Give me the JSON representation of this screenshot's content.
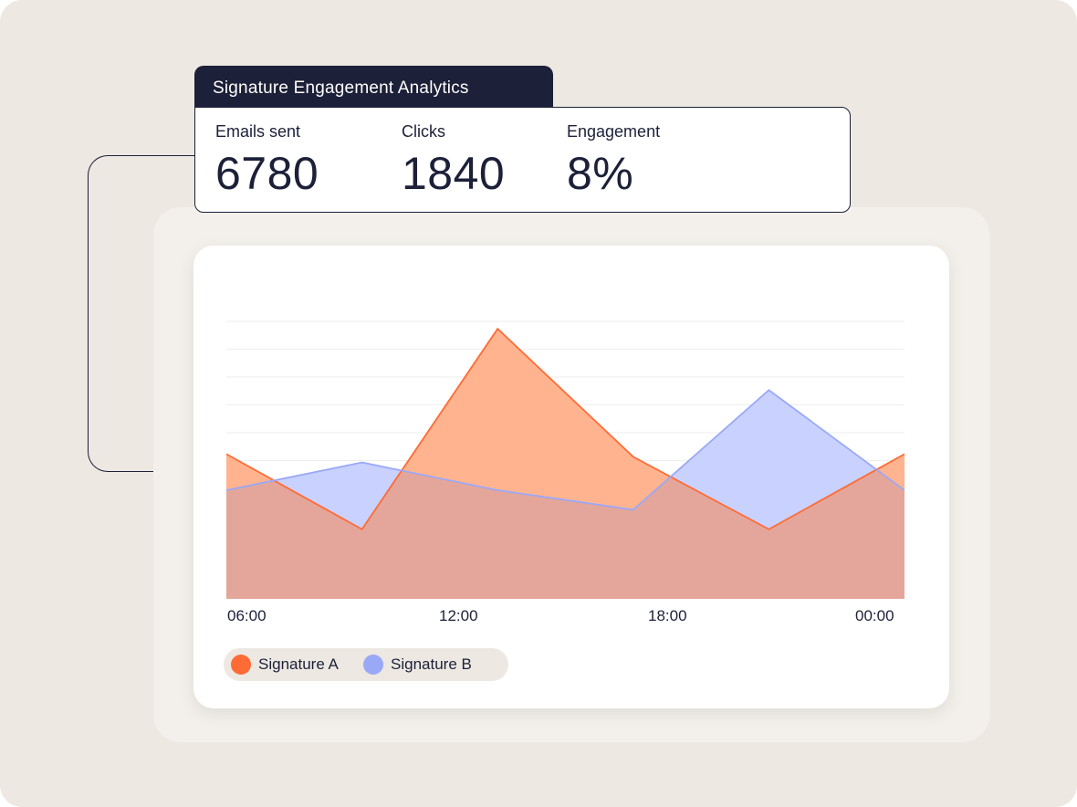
{
  "header": {
    "title": "Signature Engagement Analytics"
  },
  "stats": [
    {
      "label": "Emails sent",
      "value": "6780"
    },
    {
      "label": "Clicks",
      "value": "1840"
    },
    {
      "label": "Engagement",
      "value": "8%"
    }
  ],
  "chart_data": {
    "type": "area",
    "title": "",
    "xlabel": "",
    "ylabel": "",
    "x_ticks": [
      "06:00",
      "12:00",
      "18:00",
      "00:00"
    ],
    "grid": true,
    "legend_placement": "bottom-left",
    "series": [
      {
        "name": "Signature A",
        "color": "#ff6b35",
        "fill": "#ffb38f",
        "values": [
          52,
          25,
          97,
          51,
          25,
          52
        ]
      },
      {
        "name": "Signature B",
        "color": "#9aa8f8",
        "fill": "#c9d1ff",
        "values": [
          39,
          49,
          39,
          32,
          75,
          39
        ]
      }
    ],
    "overlap_color": "#e4a69a",
    "ylim": [
      0,
      100
    ]
  }
}
